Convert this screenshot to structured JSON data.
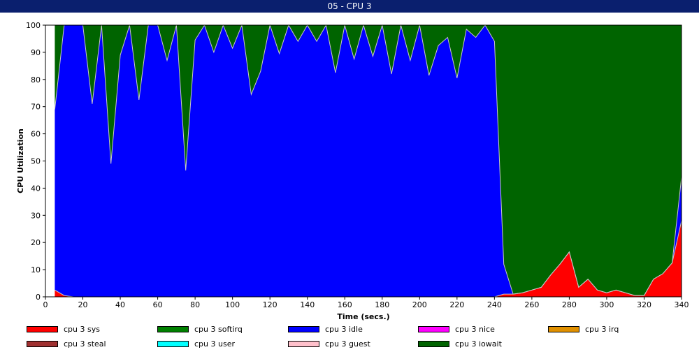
{
  "window": {
    "title": "05 - CPU 3"
  },
  "chart_data": {
    "type": "area",
    "title": "05 - CPU 3",
    "xlabel": "Time (secs.)",
    "ylabel": "CPU Utilization",
    "xlim": [
      0,
      340
    ],
    "ylim": [
      0,
      100
    ],
    "x_ticks": [
      0,
      20,
      40,
      60,
      80,
      100,
      120,
      140,
      160,
      180,
      200,
      220,
      240,
      260,
      280,
      300,
      320,
      340
    ],
    "y_ticks": [
      0,
      10,
      20,
      30,
      40,
      50,
      60,
      70,
      80,
      90,
      100
    ],
    "grid": false,
    "legend_position": "bottom",
    "x": [
      5,
      10,
      15,
      20,
      25,
      30,
      35,
      40,
      45,
      50,
      55,
      60,
      65,
      70,
      75,
      80,
      85,
      90,
      95,
      100,
      105,
      110,
      115,
      120,
      125,
      130,
      135,
      140,
      145,
      150,
      155,
      160,
      165,
      170,
      175,
      180,
      185,
      190,
      195,
      200,
      205,
      210,
      215,
      220,
      225,
      230,
      235,
      240,
      245,
      250,
      255,
      260,
      265,
      270,
      275,
      280,
      285,
      290,
      295,
      300,
      305,
      310,
      315,
      320,
      325,
      330,
      335,
      340
    ],
    "series": [
      {
        "name": "cpu 3 sys",
        "color": "#ff0000",
        "values": [
          2.5,
          0.5,
          0,
          0,
          0,
          0,
          0,
          0,
          0,
          0,
          0,
          0,
          0,
          0,
          0,
          0,
          0,
          0,
          0,
          0,
          0,
          0,
          0,
          0,
          0,
          0,
          0,
          0,
          0,
          0,
          0,
          0,
          0,
          0,
          0,
          0,
          0,
          0,
          0,
          0,
          0,
          0,
          0,
          0,
          0,
          0,
          0,
          0,
          1,
          1,
          1.5,
          2.5,
          3.5,
          8,
          12,
          16.5,
          3.5,
          6.5,
          2.5,
          1.5,
          2.5,
          1.5,
          0.5,
          0.5,
          6.5,
          8.5,
          12.5,
          28
        ]
      },
      {
        "name": "cpu 3 softirq",
        "color": "#008000",
        "values": [
          0,
          0,
          0,
          0,
          0,
          0,
          0,
          0,
          0,
          0,
          0,
          0,
          0,
          0,
          0,
          0,
          0,
          0,
          0,
          0,
          0,
          0,
          0,
          0,
          0,
          0,
          0,
          0,
          0,
          0,
          0,
          0,
          0,
          0,
          0,
          0,
          0,
          0,
          0,
          0,
          0,
          0,
          0,
          0,
          0,
          0,
          0,
          0,
          0,
          0,
          0,
          0,
          0,
          0,
          0,
          0,
          0,
          0,
          0,
          0,
          0,
          0,
          0,
          0,
          0,
          0,
          0,
          0
        ]
      },
      {
        "name": "cpu 3 idle",
        "color": "#0000ff",
        "values": [
          66.5,
          99.5,
          100,
          100,
          71,
          100,
          49,
          89,
          100,
          72.5,
          100,
          100,
          87,
          100,
          46.5,
          94.5,
          100,
          90,
          100,
          91.5,
          100,
          74.5,
          83,
          100,
          89.5,
          100,
          94,
          100,
          94,
          100,
          82.5,
          100,
          87.5,
          100,
          88.5,
          100,
          82,
          100,
          87,
          100,
          81.5,
          92.5,
          95.5,
          80.5,
          98.5,
          95.5,
          100,
          94,
          11,
          0,
          0,
          0,
          0,
          0,
          0,
          0,
          0,
          0,
          0,
          0,
          0,
          0,
          0,
          0,
          0,
          0,
          0,
          16
        ]
      },
      {
        "name": "cpu 3 nice",
        "color": "#ff00ff",
        "values": [
          0,
          0,
          0,
          0,
          0,
          0,
          0,
          0,
          0,
          0,
          0,
          0,
          0,
          0,
          0,
          0,
          0,
          0,
          0,
          0,
          0,
          0,
          0,
          0,
          0,
          0,
          0,
          0,
          0,
          0,
          0,
          0,
          0,
          0,
          0,
          0,
          0,
          0,
          0,
          0,
          0,
          0,
          0,
          0,
          0,
          0,
          0,
          0,
          0,
          0,
          0,
          0,
          0,
          0,
          0,
          0,
          0,
          0,
          0,
          0,
          0,
          0,
          0,
          0,
          0,
          0,
          0,
          0
        ]
      },
      {
        "name": "cpu 3 irq",
        "color": "#e09000",
        "values": [
          0,
          0,
          0,
          0,
          0,
          0,
          0,
          0,
          0,
          0,
          0,
          0,
          0,
          0,
          0,
          0,
          0,
          0,
          0,
          0,
          0,
          0,
          0,
          0,
          0,
          0,
          0,
          0,
          0,
          0,
          0,
          0,
          0,
          0,
          0,
          0,
          0,
          0,
          0,
          0,
          0,
          0,
          0,
          0,
          0,
          0,
          0,
          0,
          0,
          0,
          0,
          0,
          0,
          0,
          0,
          0,
          0,
          0,
          0,
          0,
          0,
          0,
          0,
          0,
          0,
          0,
          0,
          0
        ]
      },
      {
        "name": "cpu 3 steal",
        "color": "#a03030",
        "values": [
          0,
          0,
          0,
          0,
          0,
          0,
          0,
          0,
          0,
          0,
          0,
          0,
          0,
          0,
          0,
          0,
          0,
          0,
          0,
          0,
          0,
          0,
          0,
          0,
          0,
          0,
          0,
          0,
          0,
          0,
          0,
          0,
          0,
          0,
          0,
          0,
          0,
          0,
          0,
          0,
          0,
          0,
          0,
          0,
          0,
          0,
          0,
          0,
          0,
          0,
          0,
          0,
          0,
          0,
          0,
          0,
          0,
          0,
          0,
          0,
          0,
          0,
          0,
          0,
          0,
          0,
          0,
          0
        ]
      },
      {
        "name": "cpu 3 user",
        "color": "#00ffff",
        "values": [
          0,
          0,
          0,
          0,
          0,
          0,
          0,
          0,
          0,
          0,
          0,
          0,
          0,
          0,
          0,
          0,
          0,
          0,
          0,
          0,
          0,
          0,
          0,
          0,
          0,
          0,
          0,
          0,
          0,
          0,
          0,
          0,
          0,
          0,
          0,
          0,
          0,
          0,
          0,
          0,
          0,
          0,
          0,
          0,
          0,
          0,
          0,
          0,
          0,
          0,
          0,
          0,
          0,
          0,
          0,
          0,
          0,
          0,
          0,
          0,
          0,
          0,
          0,
          0,
          0,
          0,
          0,
          0
        ]
      },
      {
        "name": "cpu 3 guest",
        "color": "#ffc0cb",
        "values": [
          0,
          0,
          0,
          0,
          0,
          0,
          0,
          0,
          0,
          0,
          0,
          0,
          0,
          0,
          0,
          0,
          0,
          0,
          0,
          0,
          0,
          0,
          0,
          0,
          0,
          0,
          0,
          0,
          0,
          0,
          0,
          0,
          0,
          0,
          0,
          0,
          0,
          0,
          0,
          0,
          0,
          0,
          0,
          0,
          0,
          0,
          0,
          0,
          0,
          0,
          0,
          0,
          0,
          0,
          0,
          0,
          0,
          0,
          0,
          0,
          0,
          0,
          0,
          0,
          0,
          0,
          0,
          0
        ]
      },
      {
        "name": "cpu 3 iowait",
        "color": "#006400",
        "values": [
          31,
          0,
          0,
          0,
          29,
          0,
          51,
          11,
          0,
          27.5,
          0,
          0,
          13,
          0,
          53.5,
          5.5,
          0,
          10,
          0,
          8.5,
          0,
          25.5,
          17,
          0,
          10.5,
          0,
          6,
          0,
          6,
          0,
          17.5,
          0,
          12.5,
          0,
          11.5,
          0,
          18,
          0,
          13,
          0,
          18.5,
          7.5,
          4.5,
          19.5,
          1.5,
          4.5,
          0,
          6,
          88,
          99,
          98.5,
          97.5,
          96.5,
          92,
          88,
          83.5,
          96.5,
          93.5,
          97.5,
          98.5,
          97.5,
          98.5,
          99.5,
          99.5,
          93.5,
          91.5,
          87.5,
          56
        ]
      }
    ]
  }
}
